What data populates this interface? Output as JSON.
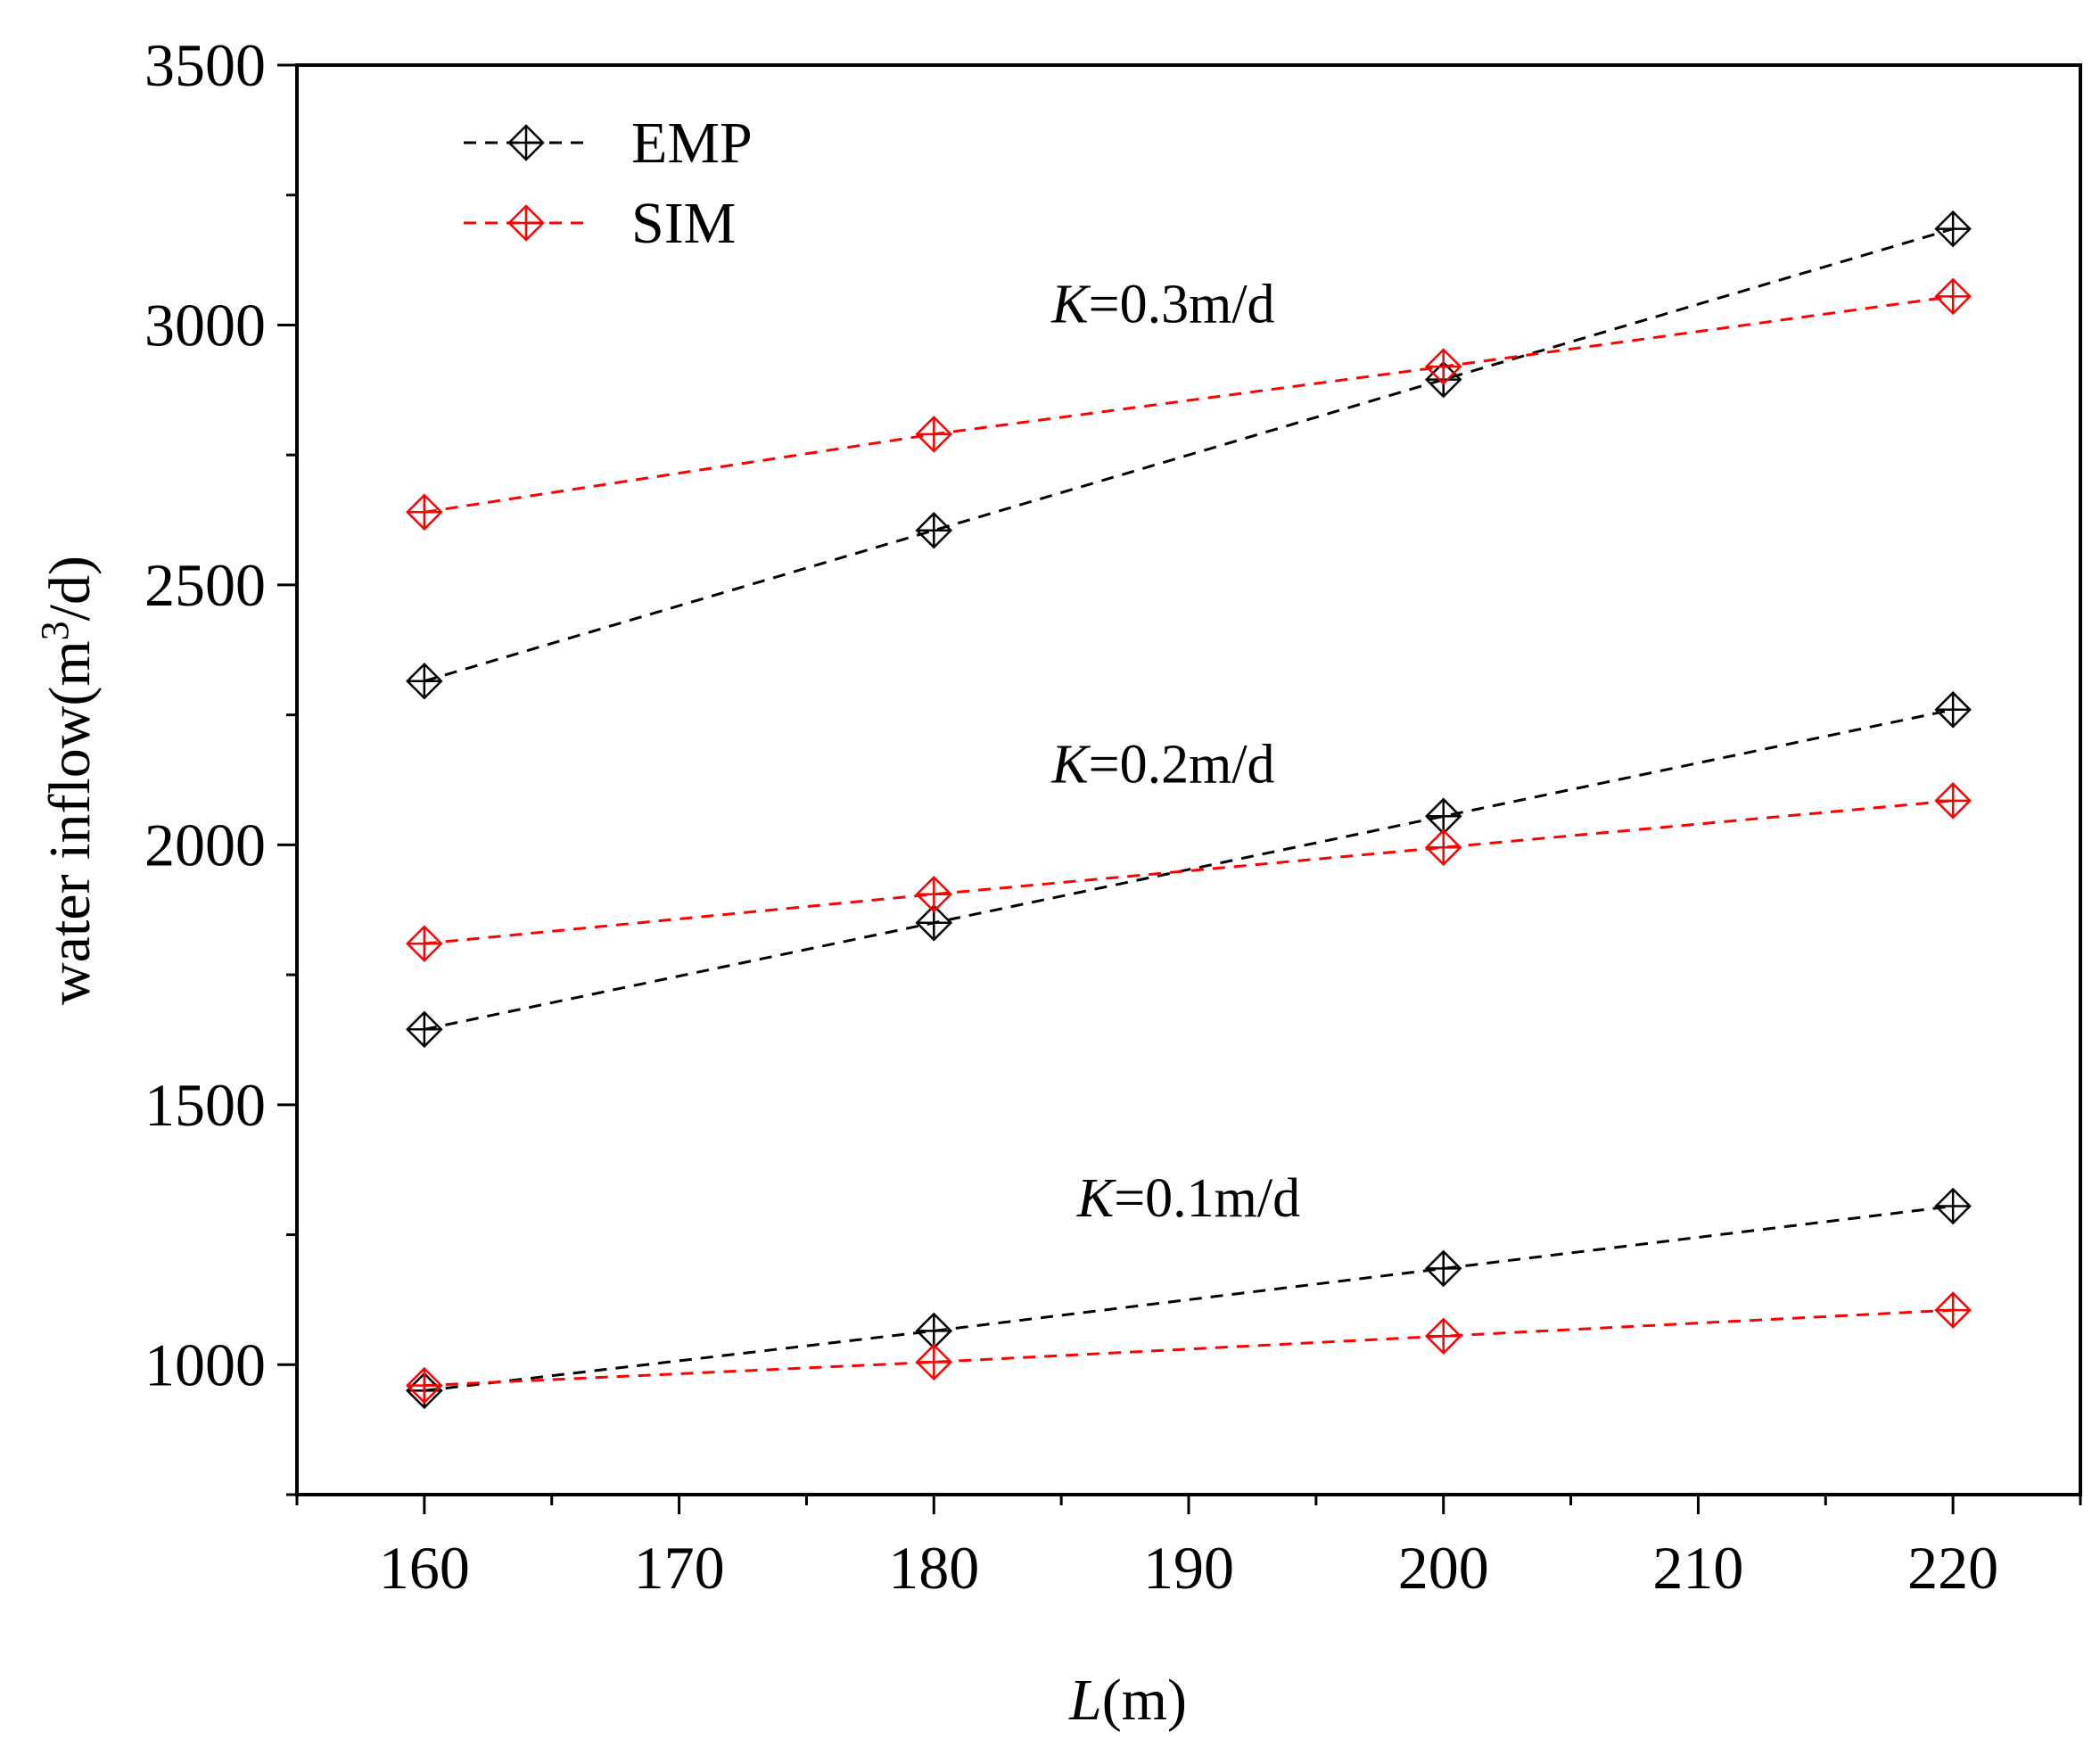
{
  "chart_data": {
    "type": "line",
    "xlabel_italic": "L",
    "xlabel_rest": "(m)",
    "ylabel_main": "water inflow(m",
    "ylabel_sup": "3",
    "ylabel_end": "/d)",
    "xlim": [
      155,
      225
    ],
    "ylim": [
      750,
      3500
    ],
    "xticks": [
      160,
      170,
      180,
      190,
      200,
      210,
      220
    ],
    "xticks_minor": [
      155,
      165,
      175,
      185,
      195,
      205,
      215,
      225
    ],
    "yticks": [
      1000,
      1500,
      2000,
      2500,
      3000,
      3500
    ],
    "yticks_minor": [
      750,
      1250,
      1750,
      2250,
      2750,
      3250
    ],
    "x": [
      160,
      180,
      200,
      220
    ],
    "legend": [
      {
        "name": "EMP",
        "color": "#000000"
      },
      {
        "name": "SIM",
        "color": "#ff0000"
      }
    ],
    "groups": [
      {
        "k_italic": "K",
        "k_rest": "=0.1m/d",
        "label_anchor": [
          190,
          1285
        ],
        "series": [
          {
            "name": "EMP",
            "color": "#000000",
            "values": [
              950,
              1065,
              1185,
              1305
            ]
          },
          {
            "name": "SIM",
            "color": "#ff0000",
            "values": [
              960,
              1005,
              1055,
              1105
            ]
          }
        ]
      },
      {
        "k_italic": "K",
        "k_rest": "=0.2m/d",
        "label_anchor": [
          189,
          2120
        ],
        "series": [
          {
            "name": "EMP",
            "color": "#000000",
            "values": [
              1645,
              1850,
              2055,
              2260
            ]
          },
          {
            "name": "SIM",
            "color": "#ff0000",
            "values": [
              1810,
              1905,
              1995,
              2085
            ]
          }
        ]
      },
      {
        "k_italic": "K",
        "k_rest": "=0.3m/d",
        "label_anchor": [
          189,
          3005
        ],
        "series": [
          {
            "name": "EMP",
            "color": "#000000",
            "values": [
              2315,
              2605,
              2895,
              3185
            ]
          },
          {
            "name": "SIM",
            "color": "#ff0000",
            "values": [
              2640,
              2790,
              2920,
              3055
            ]
          }
        ]
      }
    ]
  }
}
